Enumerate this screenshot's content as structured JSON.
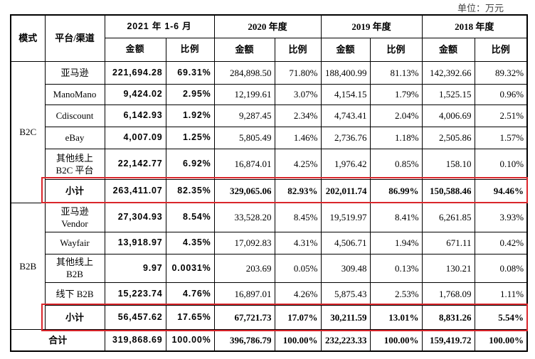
{
  "unit": "单位：万元",
  "table": {
    "header": [
      "模式",
      "平台/渠道",
      "2021 年 1-6 月",
      "2020 年度",
      "2019 年度",
      "2018 年度"
    ],
    "subheader": [
      "金额",
      "比例",
      "金额",
      "比例",
      "金额",
      "比例",
      "金额",
      "比例"
    ],
    "groups": [
      {
        "mode": "B2C",
        "rows": [
          [
            "亚马逊",
            "221,694.28",
            "69.31%",
            "284,898.50",
            "71.80%",
            "188,400.99",
            "81.13%",
            "142,392.66",
            "89.32%"
          ],
          [
            "ManoMano",
            "9,424.02",
            "2.95%",
            "12,199.61",
            "3.07%",
            "4,154.15",
            "1.79%",
            "1,525.15",
            "0.96%"
          ],
          [
            "Cdiscount",
            "6,142.93",
            "1.92%",
            "9,287.45",
            "2.34%",
            "4,743.41",
            "2.04%",
            "4,006.69",
            "2.51%"
          ],
          [
            "eBay",
            "4,007.09",
            "1.25%",
            "5,805.49",
            "1.46%",
            "2,736.76",
            "1.18%",
            "2,505.86",
            "1.57%"
          ],
          [
            "其他线上\nB2C 平台",
            "22,142.77",
            "6.92%",
            "16,874.01",
            "4.25%",
            "1,976.42",
            "0.85%",
            "158.10",
            "0.10%"
          ]
        ],
        "subtotal": [
          "小计",
          "263,411.07",
          "82.35%",
          "329,065.06",
          "82.93%",
          "202,011.74",
          "86.99%",
          "150,588.46",
          "94.46%"
        ]
      },
      {
        "mode": "B2B",
        "rows": [
          [
            "亚马逊\nVendor",
            "27,304.93",
            "8.54%",
            "33,528.20",
            "8.45%",
            "19,519.97",
            "8.41%",
            "6,261.85",
            "3.93%"
          ],
          [
            "Wayfair",
            "13,918.97",
            "4.35%",
            "17,092.83",
            "4.31%",
            "4,506.71",
            "1.94%",
            "671.11",
            "0.42%"
          ],
          [
            "其他线上\nB2B",
            "9.97",
            "0.0031%",
            "203.69",
            "0.05%",
            "309.48",
            "0.13%",
            "130.21",
            "0.08%"
          ],
          [
            "线下 B2B",
            "15,223.74",
            "4.76%",
            "16,897.01",
            "4.26%",
            "5,875.43",
            "2.53%",
            "1,768.09",
            "1.11%"
          ]
        ],
        "subtotal": [
          "小计",
          "56,457.62",
          "17.65%",
          "67,721.73",
          "17.07%",
          "30,211.59",
          "13.01%",
          "8,831.26",
          "5.54%"
        ]
      }
    ],
    "total": [
      "合计",
      "319,868.69",
      "100.00%",
      "396,786.79",
      "100.00%",
      "232,223.33",
      "100.00%",
      "159,419.72",
      "100.00%"
    ]
  }
}
